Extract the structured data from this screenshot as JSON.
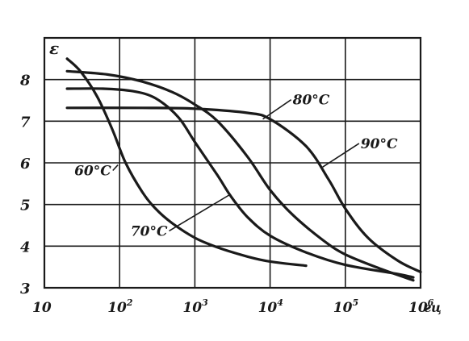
{
  "chart_data": {
    "type": "line",
    "title": "",
    "xlabel": "",
    "ylabel": "ε",
    "x_unit": "гц",
    "x_scale": "log",
    "xlim": [
      10,
      1000000
    ],
    "ylim": [
      3,
      9
    ],
    "grid": true,
    "y_ticks": [
      {
        "value": 3,
        "label": "3"
      },
      {
        "value": 4,
        "label": "4"
      },
      {
        "value": 5,
        "label": "5"
      },
      {
        "value": 6,
        "label": "6"
      },
      {
        "value": 7,
        "label": "7"
      },
      {
        "value": 8,
        "label": "8"
      }
    ],
    "x_ticks": [
      {
        "value": 10,
        "base": "10",
        "exp": ""
      },
      {
        "value": 100,
        "base": "10",
        "exp": "2"
      },
      {
        "value": 1000,
        "base": "10",
        "exp": "3"
      },
      {
        "value": 10000,
        "base": "10",
        "exp": "4"
      },
      {
        "value": 100000,
        "base": "10",
        "exp": "5"
      },
      {
        "value": 1000000,
        "base": "10",
        "exp": "6"
      }
    ],
    "series": [
      {
        "name": "60°C",
        "label_at": {
          "x": 25,
          "y": 5.7
        },
        "leader_to": {
          "x": 95,
          "y": 5.95
        },
        "points": [
          [
            20,
            8.5
          ],
          [
            30,
            8.2
          ],
          [
            50,
            7.6
          ],
          [
            80,
            6.8
          ],
          [
            120,
            6.0
          ],
          [
            200,
            5.3
          ],
          [
            300,
            4.9
          ],
          [
            500,
            4.55
          ],
          [
            1000,
            4.2
          ],
          [
            2000,
            3.97
          ],
          [
            5000,
            3.75
          ],
          [
            10000,
            3.63
          ],
          [
            30000,
            3.53
          ]
        ]
      },
      {
        "name": "70°C",
        "label_at": {
          "x": 140,
          "y": 4.25
        },
        "leader_to": {
          "x": 3000,
          "y": 5.25
        },
        "points": [
          [
            20,
            7.78
          ],
          [
            60,
            7.78
          ],
          [
            150,
            7.72
          ],
          [
            300,
            7.55
          ],
          [
            600,
            7.1
          ],
          [
            1000,
            6.5
          ],
          [
            2000,
            5.7
          ],
          [
            3000,
            5.2
          ],
          [
            5000,
            4.7
          ],
          [
            10000,
            4.25
          ],
          [
            30000,
            3.85
          ],
          [
            100000,
            3.55
          ],
          [
            500000,
            3.33
          ],
          [
            800000,
            3.25
          ]
        ]
      },
      {
        "name": "80°C",
        "label_at": {
          "x": 20000,
          "y": 7.4
        },
        "leader_to": {
          "x": 8000,
          "y": 7.05
        },
        "points": [
          [
            20,
            8.2
          ],
          [
            70,
            8.12
          ],
          [
            200,
            7.95
          ],
          [
            500,
            7.7
          ],
          [
            1000,
            7.4
          ],
          [
            2000,
            7.0
          ],
          [
            5000,
            6.15
          ],
          [
            10000,
            5.35
          ],
          [
            20000,
            4.75
          ],
          [
            50000,
            4.15
          ],
          [
            100000,
            3.8
          ],
          [
            300000,
            3.45
          ],
          [
            800000,
            3.18
          ]
        ]
      },
      {
        "name": "90°C",
        "label_at": {
          "x": 160000,
          "y": 6.35
        },
        "leader_to": {
          "x": 50000,
          "y": 5.9
        },
        "points": [
          [
            20,
            7.32
          ],
          [
            200,
            7.32
          ],
          [
            1000,
            7.3
          ],
          [
            5000,
            7.2
          ],
          [
            10000,
            7.05
          ],
          [
            30000,
            6.4
          ],
          [
            60000,
            5.6
          ],
          [
            100000,
            4.9
          ],
          [
            200000,
            4.2
          ],
          [
            500000,
            3.65
          ],
          [
            1000000,
            3.38
          ]
        ]
      }
    ]
  }
}
